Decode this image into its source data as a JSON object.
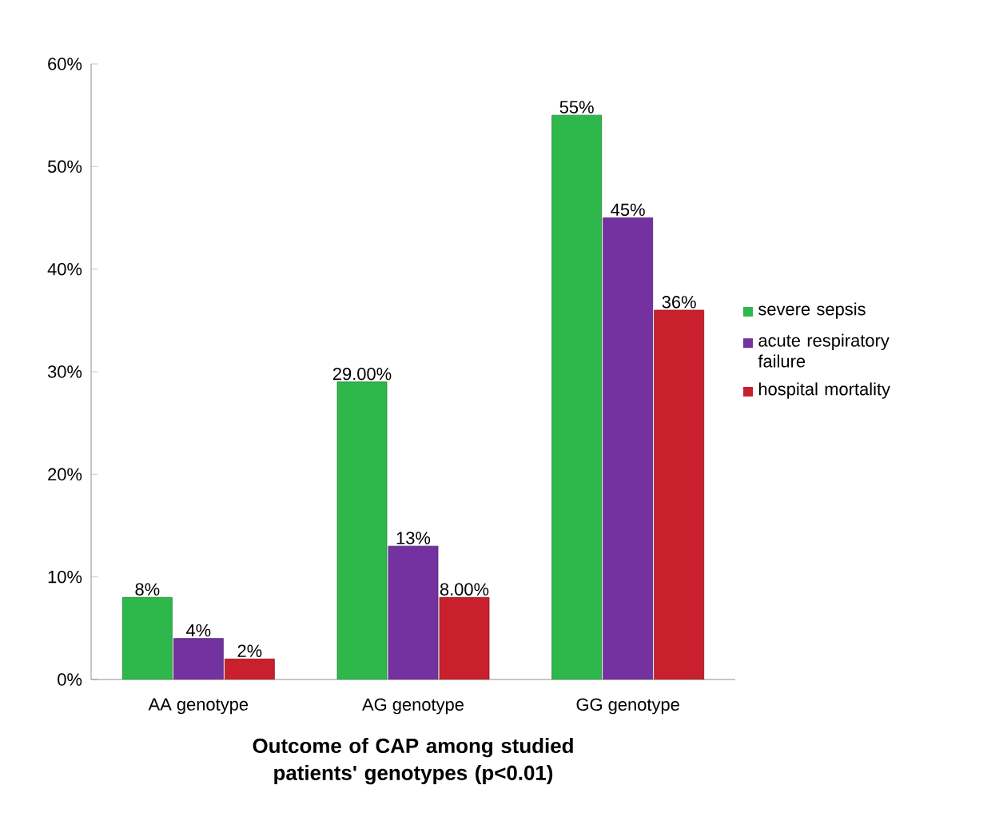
{
  "chart_data": {
    "type": "bar",
    "xlabel": "Outcome of CAP among studied patients' genotypes (p<0.01)",
    "categories": [
      "AA genotype",
      "AG genotype",
      "GG genotype"
    ],
    "series": [
      {
        "name": "severe sepsis",
        "color": "#2eb84c",
        "values": [
          8,
          29,
          55
        ],
        "value_labels": [
          "8%",
          "29.00%",
          "55%"
        ]
      },
      {
        "name": "acute respiratory failure",
        "color": "#7332a0",
        "values": [
          4,
          13,
          45
        ],
        "value_labels": [
          "4%",
          "13%",
          "45%"
        ]
      },
      {
        "name": "hospital mortality",
        "color": "#c8202c",
        "values": [
          2,
          8,
          36
        ],
        "value_labels": [
          "2%",
          "8.00%",
          "36%"
        ]
      }
    ],
    "ylim": [
      0,
      60
    ],
    "yticks": [
      {
        "value": 0,
        "label": "0%"
      },
      {
        "value": 10,
        "label": "10%"
      },
      {
        "value": 20,
        "label": "20%"
      },
      {
        "value": 30,
        "label": "30%"
      },
      {
        "value": 40,
        "label": "40%"
      },
      {
        "value": 50,
        "label": "50%"
      },
      {
        "value": 60,
        "label": "60%"
      }
    ],
    "grid": false,
    "legend": "right"
  }
}
